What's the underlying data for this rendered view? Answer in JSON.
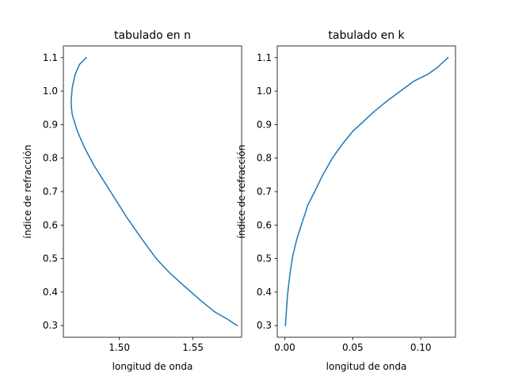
{
  "chart_data": [
    {
      "type": "line",
      "title": "tabulado en n",
      "xlabel": "longitud de onda",
      "ylabel": "índice de refracción",
      "xlim": [
        1.462,
        1.583
      ],
      "ylim": [
        0.265,
        1.135
      ],
      "xticks": [
        1.5,
        1.55
      ],
      "xtick_labels": [
        "1.50",
        "1.55"
      ],
      "yticks": [
        0.3,
        0.4,
        0.5,
        0.6,
        0.7,
        0.8,
        0.9,
        1.0,
        1.1
      ],
      "ytick_labels": [
        "0.3",
        "0.4",
        "0.5",
        "0.6",
        "0.7",
        "0.8",
        "0.9",
        "1.0",
        "1.1"
      ],
      "grid": false,
      "series": [
        {
          "color": "#1f77b4",
          "x": [
            1.4775,
            1.473,
            1.47,
            1.468,
            1.4673,
            1.4675,
            1.468,
            1.4715,
            1.4765,
            1.4825,
            1.494,
            1.5055,
            1.515,
            1.525,
            1.5335,
            1.5435,
            1.5565,
            1.565,
            1.573,
            1.58
          ],
          "y": [
            1.1,
            1.08,
            1.05,
            1.01,
            0.97,
            0.95,
            0.93,
            0.88,
            0.83,
            0.78,
            0.7,
            0.62,
            0.56,
            0.5,
            0.46,
            0.42,
            0.37,
            0.34,
            0.32,
            0.3
          ]
        }
      ]
    },
    {
      "type": "line",
      "title": "tabulado en k",
      "xlabel": "longitud de onda",
      "ylabel": "índice de refracción",
      "xlim": [
        -0.0055,
        0.1255
      ],
      "ylim": [
        0.265,
        1.135
      ],
      "xticks": [
        0.0,
        0.05,
        0.1
      ],
      "xtick_labels": [
        "0.00",
        "0.05",
        "0.10"
      ],
      "yticks": [
        0.3,
        0.4,
        0.5,
        0.6,
        0.7,
        0.8,
        0.9,
        1.0,
        1.1
      ],
      "ytick_labels": [
        "0.3",
        "0.4",
        "0.5",
        "0.6",
        "0.7",
        "0.8",
        "0.9",
        "1.0",
        "1.1"
      ],
      "grid": false,
      "series": [
        {
          "color": "#1f77b4",
          "x": [
            0.0005,
            0.001,
            0.002,
            0.004,
            0.006,
            0.009,
            0.013,
            0.017,
            0.022,
            0.028,
            0.035,
            0.042,
            0.05,
            0.058,
            0.066,
            0.075,
            0.085,
            0.095,
            0.105,
            0.112,
            0.12
          ],
          "y": [
            0.3,
            0.33,
            0.39,
            0.46,
            0.51,
            0.56,
            0.61,
            0.66,
            0.7,
            0.75,
            0.8,
            0.84,
            0.88,
            0.91,
            0.94,
            0.97,
            1.0,
            1.03,
            1.05,
            1.07,
            1.1
          ]
        }
      ]
    }
  ]
}
